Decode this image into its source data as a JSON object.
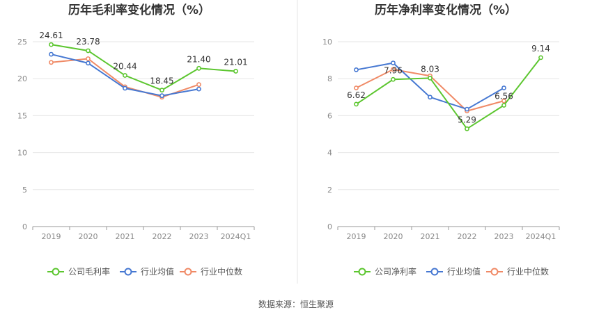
{
  "source_label": "数据来源：恒生聚源",
  "chart_data": [
    {
      "type": "line",
      "title": "历年毛利率变化情况（%）",
      "categories": [
        "2019",
        "2020",
        "2021",
        "2022",
        "2023",
        "2024Q1"
      ],
      "ylim": [
        0,
        25
      ],
      "yticks": [
        0,
        5,
        10,
        15,
        20,
        25
      ],
      "grid": true,
      "legend_position": "bottom",
      "label_series": 0,
      "series": [
        {
          "name": "公司毛利率",
          "color": "#5cc62f",
          "values": [
            24.61,
            23.78,
            20.44,
            18.45,
            21.4,
            21.01
          ],
          "labels": [
            "24.61",
            "23.78",
            "20.44",
            "18.45",
            "21.40",
            "21.01"
          ]
        },
        {
          "name": "行业均值",
          "color": "#4678d2",
          "values": [
            23.3,
            22.1,
            18.7,
            17.7,
            18.6,
            null
          ]
        },
        {
          "name": "行业中位数",
          "color": "#f08a66",
          "values": [
            22.2,
            22.7,
            18.9,
            17.5,
            19.2,
            null
          ]
        }
      ]
    },
    {
      "type": "line",
      "title": "历年净利率变化情况（%）",
      "categories": [
        "2019",
        "2020",
        "2021",
        "2022",
        "2023",
        "2024Q1"
      ],
      "ylim": [
        0,
        10
      ],
      "yticks": [
        0,
        2,
        4,
        6,
        8,
        10
      ],
      "grid": true,
      "legend_position": "bottom",
      "label_series": 0,
      "series": [
        {
          "name": "公司净利率",
          "color": "#5cc62f",
          "values": [
            6.62,
            7.96,
            8.03,
            5.29,
            6.56,
            9.14
          ],
          "labels": [
            "6.62",
            "7.96",
            "8.03",
            "5.29",
            "6.56",
            "9.14"
          ]
        },
        {
          "name": "行业均值",
          "color": "#4678d2",
          "values": [
            8.48,
            8.85,
            7.0,
            6.35,
            7.5,
            null
          ]
        },
        {
          "name": "行业中位数",
          "color": "#f08a66",
          "values": [
            7.5,
            8.5,
            8.15,
            6.25,
            6.8,
            null
          ]
        }
      ]
    }
  ]
}
